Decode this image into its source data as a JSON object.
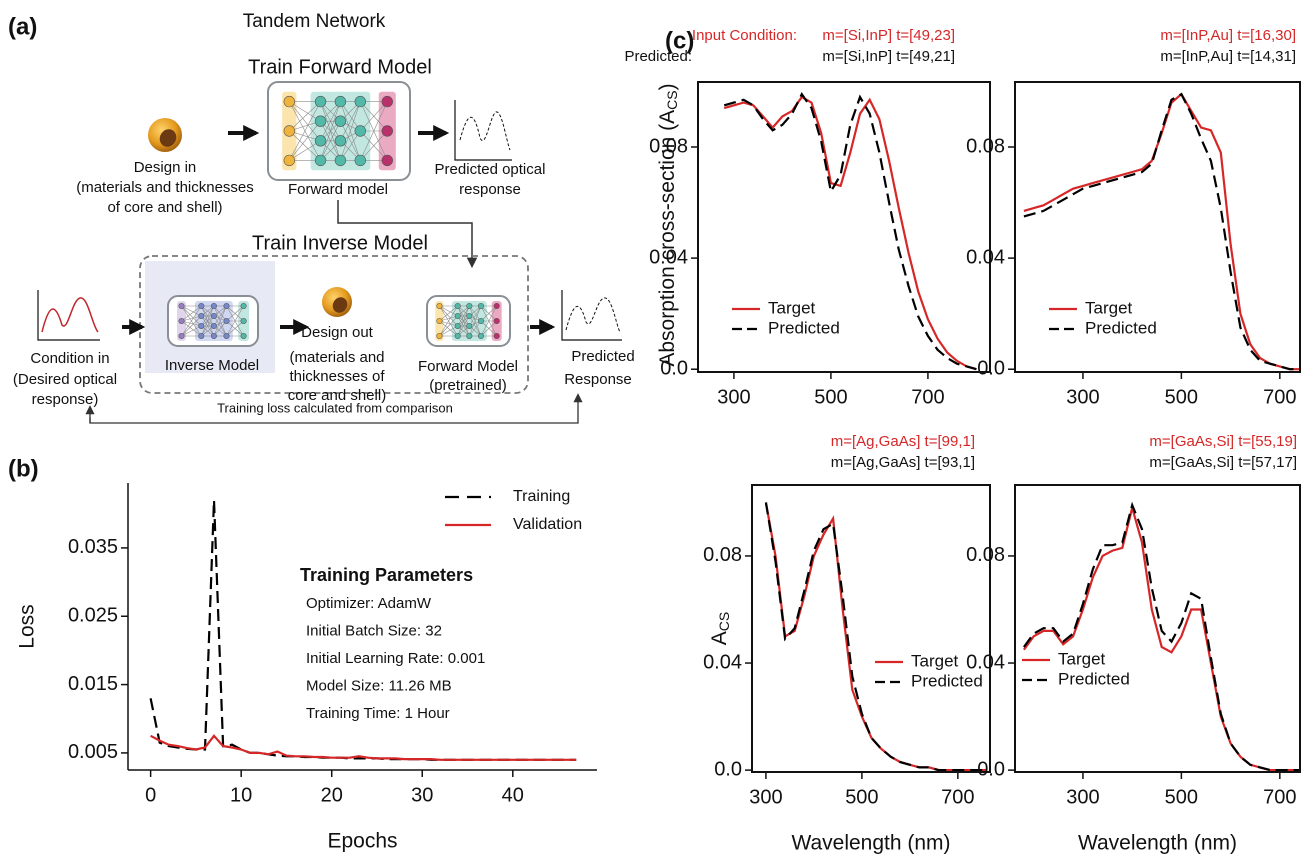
{
  "panel_labels": [
    "(a)",
    "(b)",
    "(c)"
  ],
  "diagram": {
    "title": "Tandem Network",
    "forward_title": "Train Forward Model",
    "design_in": [
      "Design in",
      "(materials and thicknesses",
      "of core and shell)"
    ],
    "forward_model": "Forward model",
    "predicted_optical": [
      "Predicted optical",
      "response"
    ],
    "inverse_title": "Train Inverse Model",
    "condition_in": [
      "Condition in",
      "(Desired optical",
      "response)"
    ],
    "inverse_model": "Inverse Model",
    "design_out": [
      "Design out",
      "(materials and",
      "thicknesses of",
      "core and shell)"
    ],
    "forward_pretrained": [
      "Forward Model",
      "(pretrained)"
    ],
    "predicted_response": [
      "Predicted",
      "Response"
    ],
    "loss_note": "Training loss calculated from comparison"
  },
  "chart_data": [
    {
      "type": "line",
      "xlabel": "Epochs",
      "ylabel": "Loss",
      "x": [
        0,
        1,
        2,
        3,
        4,
        5,
        6,
        7,
        8,
        9,
        10,
        11,
        12,
        13,
        14,
        15,
        16,
        17,
        18,
        19,
        20,
        21,
        22,
        23,
        24,
        25,
        26,
        27,
        28,
        29,
        30,
        31,
        32,
        33,
        34,
        35,
        36,
        37,
        38,
        39,
        40,
        41,
        42,
        43,
        44,
        45,
        46,
        47
      ],
      "series": [
        {
          "name": "Training",
          "color": "#000000",
          "line_style": "dashed",
          "values": [
            0.013,
            0.0065,
            0.006,
            0.0058,
            0.0056,
            0.0055,
            0.0055,
            0.042,
            0.006,
            0.0062,
            0.0055,
            0.005,
            0.005,
            0.0048,
            0.0046,
            0.0045,
            0.0045,
            0.0044,
            0.0044,
            0.0043,
            0.0043,
            0.0043,
            0.0042,
            0.0042,
            0.0042,
            0.0042,
            0.0041,
            0.0041,
            0.0041,
            0.0041,
            0.0041,
            0.004,
            0.004,
            0.004,
            0.004,
            0.004,
            0.004,
            0.004,
            0.004,
            0.004,
            0.004,
            0.004,
            0.004,
            0.004,
            0.004,
            0.004,
            0.004,
            0.004
          ]
        },
        {
          "name": "Validation",
          "color": "#d62728",
          "line_style": "solid",
          "values": [
            0.0075,
            0.0068,
            0.0062,
            0.006,
            0.0057,
            0.0055,
            0.0058,
            0.0075,
            0.006,
            0.0058,
            0.0055,
            0.005,
            0.005,
            0.0048,
            0.0052,
            0.0046,
            0.0045,
            0.0045,
            0.0044,
            0.0044,
            0.0043,
            0.0043,
            0.0043,
            0.0045,
            0.0043,
            0.0042,
            0.0042,
            0.0042,
            0.0041,
            0.0041,
            0.0041,
            0.0041,
            0.004,
            0.004,
            0.004,
            0.004,
            0.004,
            0.004,
            0.004,
            0.004,
            0.004,
            0.004,
            0.004,
            0.004,
            0.004,
            0.004,
            0.004,
            0.004
          ]
        }
      ],
      "xlim": [
        -2.5,
        49.3
      ],
      "xticks": [
        0,
        10,
        20,
        30,
        40
      ],
      "ylim": [
        0.0025,
        0.0445
      ],
      "yticks": [
        0.035,
        0.025,
        0.015,
        0.005
      ],
      "legend": "upper right",
      "annotation_title": "Training Parameters",
      "annotations": [
        "Optimizer: AdamW",
        "Initial Batch Size: 32",
        "Initial Learning Rate: 0.001",
        "Model Size: 11.26 MB",
        "Training Time: 1 Hour"
      ]
    },
    {
      "type": "line",
      "ylabel": {
        "text": "Absorption cross-section (A",
        "sub": "CS",
        "tail": ")"
      },
      "condition_prefix": "Input Condition:",
      "condition": "m=[Si,InP] t=[49,23]",
      "predicted_prefix": "Predicted:",
      "predicted": "m=[Si,InP] t=[49,21]",
      "x": [
        280,
        300,
        320,
        340,
        360,
        380,
        400,
        420,
        440,
        460,
        480,
        500,
        520,
        540,
        560,
        580,
        600,
        620,
        640,
        660,
        680,
        700,
        720,
        740,
        760,
        780,
        800
      ],
      "series": [
        {
          "name": "Target",
          "color": "#d62728",
          "line_style": "solid",
          "values": [
            0.094,
            0.095,
            0.096,
            0.095,
            0.091,
            0.087,
            0.091,
            0.093,
            0.098,
            0.096,
            0.085,
            0.067,
            0.066,
            0.078,
            0.092,
            0.097,
            0.09,
            0.075,
            0.058,
            0.042,
            0.028,
            0.018,
            0.011,
            0.006,
            0.003,
            0.001,
            0.0
          ]
        },
        {
          "name": "Predicted",
          "color": "#000000",
          "line_style": "dashed",
          "values": [
            0.095,
            0.096,
            0.097,
            0.095,
            0.09,
            0.086,
            0.088,
            0.092,
            0.099,
            0.094,
            0.082,
            0.064,
            0.07,
            0.088,
            0.098,
            0.092,
            0.078,
            0.06,
            0.043,
            0.03,
            0.019,
            0.012,
            0.007,
            0.004,
            0.002,
            0.001,
            0.0
          ]
        }
      ],
      "xlim": [
        226,
        828
      ],
      "xticks": [
        300,
        500,
        700
      ],
      "ylim": [
        -0.001,
        0.1034
      ],
      "yticks": [
        {
          "value": 0,
          "label": "0.0"
        },
        0.04,
        0.08
      ],
      "legend": "lower left"
    },
    {
      "type": "line",
      "condition": "m=[InP,Au] t=[16,30]",
      "predicted": "m=[InP,Au] t=[14,31]",
      "x": [
        180,
        200,
        220,
        240,
        260,
        280,
        300,
        320,
        340,
        360,
        380,
        400,
        420,
        440,
        460,
        480,
        500,
        520,
        540,
        560,
        580,
        600,
        620,
        640,
        660,
        680,
        700,
        720,
        740
      ],
      "series": [
        {
          "name": "Target",
          "color": "#d62728",
          "line_style": "solid",
          "values": [
            0.057,
            0.058,
            0.059,
            0.061,
            0.063,
            0.065,
            0.066,
            0.067,
            0.068,
            0.069,
            0.07,
            0.071,
            0.072,
            0.075,
            0.085,
            0.096,
            0.099,
            0.093,
            0.087,
            0.086,
            0.078,
            0.045,
            0.02,
            0.009,
            0.004,
            0.002,
            0.001,
            0.0,
            0.0
          ]
        },
        {
          "name": "Predicted",
          "color": "#000000",
          "line_style": "dashed",
          "values": [
            0.055,
            0.056,
            0.057,
            0.059,
            0.061,
            0.063,
            0.065,
            0.066,
            0.067,
            0.068,
            0.069,
            0.07,
            0.071,
            0.074,
            0.086,
            0.097,
            0.099,
            0.092,
            0.083,
            0.075,
            0.058,
            0.035,
            0.015,
            0.007,
            0.003,
            0.002,
            0.001,
            0.0,
            0.0
          ]
        }
      ],
      "xlim": [
        162,
        741
      ],
      "xticks": [
        300,
        500,
        700
      ],
      "ylim": [
        -0.001,
        0.1034
      ],
      "yticks": [
        {
          "value": 0,
          "label": "0.0"
        },
        0.04,
        0.08
      ],
      "legend": "lower left"
    },
    {
      "type": "line",
      "ylabel": {
        "text": "A",
        "sub": "CS"
      },
      "xlabel": "Wavelength (nm)",
      "condition": "m=[Ag,GaAs] t=[99,1]",
      "predicted": "m=[Ag,GaAs] t=[93,1]",
      "x": [
        300,
        320,
        340,
        360,
        380,
        400,
        420,
        440,
        460,
        480,
        500,
        520,
        540,
        560,
        580,
        600,
        620,
        640,
        660,
        680,
        700,
        720,
        740,
        760
      ],
      "series": [
        {
          "name": "Target",
          "color": "#d62728",
          "line_style": "solid",
          "values": [
            0.1,
            0.08,
            0.05,
            0.052,
            0.065,
            0.08,
            0.088,
            0.094,
            0.06,
            0.03,
            0.02,
            0.012,
            0.008,
            0.005,
            0.003,
            0.002,
            0.001,
            0.001,
            0.0,
            0.0,
            0.0,
            0.0,
            0.0,
            0.0
          ]
        },
        {
          "name": "Predicted",
          "color": "#000000",
          "line_style": "dashed",
          "values": [
            0.1,
            0.078,
            0.049,
            0.053,
            0.067,
            0.082,
            0.09,
            0.092,
            0.065,
            0.035,
            0.021,
            0.012,
            0.008,
            0.005,
            0.003,
            0.002,
            0.001,
            0.001,
            0.0,
            0.0,
            0.0,
            0.0,
            0.0,
            0.0
          ]
        }
      ],
      "xlim": [
        271,
        767
      ],
      "xticks": [
        300,
        500,
        700
      ],
      "ylim": [
        -0.0007,
        0.1065
      ],
      "yticks": [
        {
          "value": 0,
          "label": "0.0"
        },
        0.04,
        0.08
      ],
      "legend": "lower right"
    },
    {
      "type": "line",
      "xlabel": "Wavelength (nm)",
      "condition": "m=[GaAs,Si] t=[55,19]",
      "predicted": "m=[GaAs,Si] t=[57,17]",
      "x": [
        180,
        200,
        220,
        240,
        260,
        280,
        300,
        320,
        340,
        360,
        380,
        400,
        420,
        440,
        460,
        480,
        500,
        520,
        540,
        560,
        580,
        600,
        620,
        640,
        660,
        680,
        700,
        720,
        740
      ],
      "series": [
        {
          "name": "Target",
          "color": "#d62728",
          "line_style": "solid",
          "values": [
            0.045,
            0.05,
            0.052,
            0.052,
            0.047,
            0.05,
            0.06,
            0.072,
            0.08,
            0.082,
            0.083,
            0.098,
            0.085,
            0.06,
            0.046,
            0.044,
            0.05,
            0.06,
            0.06,
            0.04,
            0.02,
            0.01,
            0.005,
            0.002,
            0.001,
            0.0,
            0.0,
            0.0,
            0.0
          ]
        },
        {
          "name": "Predicted",
          "color": "#000000",
          "line_style": "dashed",
          "values": [
            0.046,
            0.051,
            0.053,
            0.053,
            0.048,
            0.051,
            0.062,
            0.075,
            0.084,
            0.084,
            0.085,
            0.099,
            0.09,
            0.068,
            0.052,
            0.048,
            0.055,
            0.066,
            0.064,
            0.042,
            0.021,
            0.01,
            0.005,
            0.002,
            0.001,
            0.0,
            0.0,
            0.0,
            0.0
          ]
        }
      ],
      "xlim": [
        162,
        741
      ],
      "xticks": [
        300,
        500,
        700
      ],
      "ylim": [
        -0.0007,
        0.1065
      ],
      "yticks": [
        {
          "value": 0,
          "label": "0.0"
        },
        0.04,
        0.08
      ],
      "legend": "center left"
    }
  ]
}
